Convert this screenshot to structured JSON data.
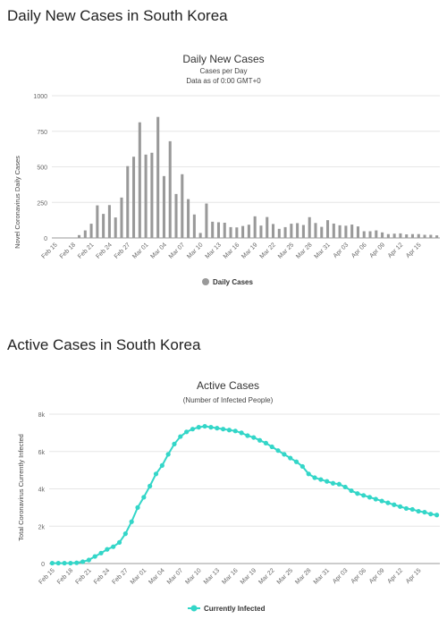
{
  "sections": [
    {
      "heading": "Daily New Cases in South Korea"
    },
    {
      "heading": "Active Cases in South Korea"
    }
  ],
  "chart_data": [
    {
      "type": "bar",
      "title": "Daily New Cases",
      "subtitle": [
        "Cases per Day",
        "Data as of 0:00 GMT+0"
      ],
      "ylabel": "Novel Coronavirus Daily Cases",
      "xlabel": "",
      "ylim": [
        0,
        1000
      ],
      "yticks": [
        0,
        250,
        500,
        750,
        1000
      ],
      "categories": [
        "Feb 15",
        "Feb 16",
        "Feb 17",
        "Feb 18",
        "Feb 19",
        "Feb 20",
        "Feb 21",
        "Feb 22",
        "Feb 23",
        "Feb 24",
        "Feb 25",
        "Feb 26",
        "Feb 27",
        "Feb 28",
        "Feb 29",
        "Mar 01",
        "Mar 02",
        "Mar 03",
        "Mar 04",
        "Mar 05",
        "Mar 06",
        "Mar 07",
        "Mar 08",
        "Mar 09",
        "Mar 10",
        "Mar 11",
        "Mar 12",
        "Mar 13",
        "Mar 14",
        "Mar 15",
        "Mar 16",
        "Mar 17",
        "Mar 18",
        "Mar 19",
        "Mar 20",
        "Mar 21",
        "Mar 22",
        "Mar 23",
        "Mar 24",
        "Mar 25",
        "Mar 26",
        "Mar 27",
        "Mar 28",
        "Mar 29",
        "Mar 30",
        "Mar 31",
        "Apr 01",
        "Apr 02",
        "Apr 03",
        "Apr 04",
        "Apr 05",
        "Apr 06",
        "Apr 07",
        "Apr 08",
        "Apr 09",
        "Apr 10",
        "Apr 11",
        "Apr 12",
        "Apr 13",
        "Apr 14",
        "Apr 15",
        "Apr 16",
        "Apr 17",
        "Apr 18"
      ],
      "xtick_labels": [
        "Feb 15",
        "Feb 18",
        "Feb 21",
        "Feb 24",
        "Feb 27",
        "Mar 01",
        "Mar 04",
        "Mar 07",
        "Mar 10",
        "Mar 13",
        "Mar 16",
        "Mar 19",
        "Mar 22",
        "Mar 25",
        "Mar 28",
        "Mar 31",
        "Apr 03",
        "Apr 06",
        "Apr 09",
        "Apr 12",
        "Apr 15"
      ],
      "series": [
        {
          "name": "Daily Cases",
          "color": "#999999",
          "values": [
            0,
            0,
            0,
            1,
            20,
            53,
            100,
            229,
            169,
            231,
            144,
            284,
            505,
            571,
            813,
            586,
            599,
            851,
            435,
            680,
            309,
            448,
            273,
            165,
            35,
            242,
            114,
            110,
            107,
            76,
            74,
            84,
            93,
            152,
            87,
            147,
            98,
            64,
            76,
            100,
            104,
            91,
            146,
            105,
            78,
            125,
            101,
            89,
            86,
            94,
            81,
            47,
            47,
            53,
            39,
            27,
            30,
            32,
            25,
            27,
            27,
            22,
            22,
            18
          ]
        }
      ],
      "legend": "bottom-center",
      "grid": true
    },
    {
      "type": "line",
      "title": "Active Cases",
      "subtitle": [
        "(Number of Infected People)"
      ],
      "ylabel": "Total Coronavirus Currently Infected",
      "xlabel": "",
      "ylim": [
        0,
        8000
      ],
      "yticks": [
        0,
        2000,
        4000,
        6000,
        8000
      ],
      "ytick_labels": [
        "0",
        "2k",
        "4k",
        "6k",
        "8k"
      ],
      "categories": [
        "Feb 15",
        "Feb 16",
        "Feb 17",
        "Feb 18",
        "Feb 19",
        "Feb 20",
        "Feb 21",
        "Feb 22",
        "Feb 23",
        "Feb 24",
        "Feb 25",
        "Feb 26",
        "Feb 27",
        "Feb 28",
        "Feb 29",
        "Mar 01",
        "Mar 02",
        "Mar 03",
        "Mar 04",
        "Mar 05",
        "Mar 06",
        "Mar 07",
        "Mar 08",
        "Mar 09",
        "Mar 10",
        "Mar 11",
        "Mar 12",
        "Mar 13",
        "Mar 14",
        "Mar 15",
        "Mar 16",
        "Mar 17",
        "Mar 18",
        "Mar 19",
        "Mar 20",
        "Mar 21",
        "Mar 22",
        "Mar 23",
        "Mar 24",
        "Mar 25",
        "Mar 26",
        "Mar 27",
        "Mar 28",
        "Mar 29",
        "Mar 30",
        "Mar 31",
        "Apr 01",
        "Apr 02",
        "Apr 03",
        "Apr 04",
        "Apr 05",
        "Apr 06",
        "Apr 07",
        "Apr 08",
        "Apr 09",
        "Apr 10",
        "Apr 11",
        "Apr 12",
        "Apr 13",
        "Apr 14",
        "Apr 15",
        "Apr 16",
        "Apr 17",
        "Apr 18"
      ],
      "xtick_labels": [
        "Feb 15",
        "Feb 18",
        "Feb 21",
        "Feb 24",
        "Feb 27",
        "Mar 01",
        "Mar 04",
        "Mar 07",
        "Mar 10",
        "Mar 13",
        "Mar 16",
        "Mar 19",
        "Mar 22",
        "Mar 25",
        "Mar 28",
        "Mar 31",
        "Apr 03",
        "Apr 06",
        "Apr 09",
        "Apr 12",
        "Apr 15"
      ],
      "series": [
        {
          "name": "Currently Infected",
          "color": "#33d6c8",
          "values": [
            20,
            20,
            20,
            21,
            40,
            95,
            190,
            380,
            560,
            760,
            900,
            1130,
            1600,
            2240,
            3000,
            3550,
            4150,
            4800,
            5250,
            5850,
            6400,
            6800,
            7050,
            7200,
            7300,
            7350,
            7300,
            7250,
            7200,
            7150,
            7100,
            7000,
            6850,
            6750,
            6600,
            6450,
            6250,
            6050,
            5850,
            5650,
            5450,
            5200,
            4800,
            4600,
            4500,
            4400,
            4300,
            4250,
            4100,
            3900,
            3750,
            3650,
            3550,
            3450,
            3350,
            3250,
            3150,
            3050,
            2950,
            2900,
            2800,
            2750,
            2650,
            2600
          ]
        }
      ],
      "legend": "bottom-center",
      "grid": true
    }
  ]
}
